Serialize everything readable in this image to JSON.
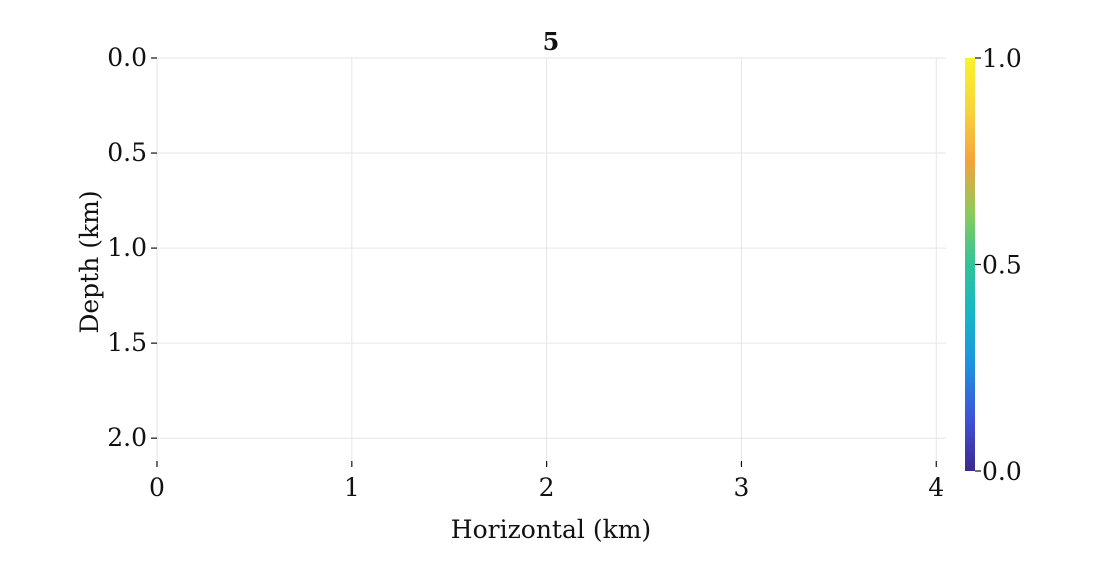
{
  "chart_data": {
    "type": "heatmap",
    "title": "5",
    "xlabel": "Horizontal (km)",
    "ylabel": "Depth (km)",
    "xlim": [
      0,
      4.05
    ],
    "ylim": [
      0,
      2.12
    ],
    "y_inverted": true,
    "x_ticks": [
      0,
      1,
      2,
      3,
      4
    ],
    "x_tick_labels": [
      "0",
      "1",
      "2",
      "3",
      "4"
    ],
    "y_ticks": [
      0.0,
      0.5,
      1.0,
      1.5,
      2.0
    ],
    "y_tick_labels": [
      "0.0",
      "0.5",
      "1.0",
      "1.5",
      "2.0"
    ],
    "grid": true,
    "values": [],
    "colorbar": {
      "colormap": "plasma-like",
      "range": [
        0.0,
        1.0
      ],
      "ticks": [
        0.0,
        0.5,
        1.0
      ],
      "tick_labels": [
        "0.0",
        "0.5",
        "1.0"
      ],
      "colors": [
        "#3b2a8f",
        "#3f52d6",
        "#1f8fe0",
        "#15b6c8",
        "#32c39a",
        "#8ccb5a",
        "#f5a23c",
        "#f7d53a",
        "#f8f32b"
      ]
    }
  }
}
